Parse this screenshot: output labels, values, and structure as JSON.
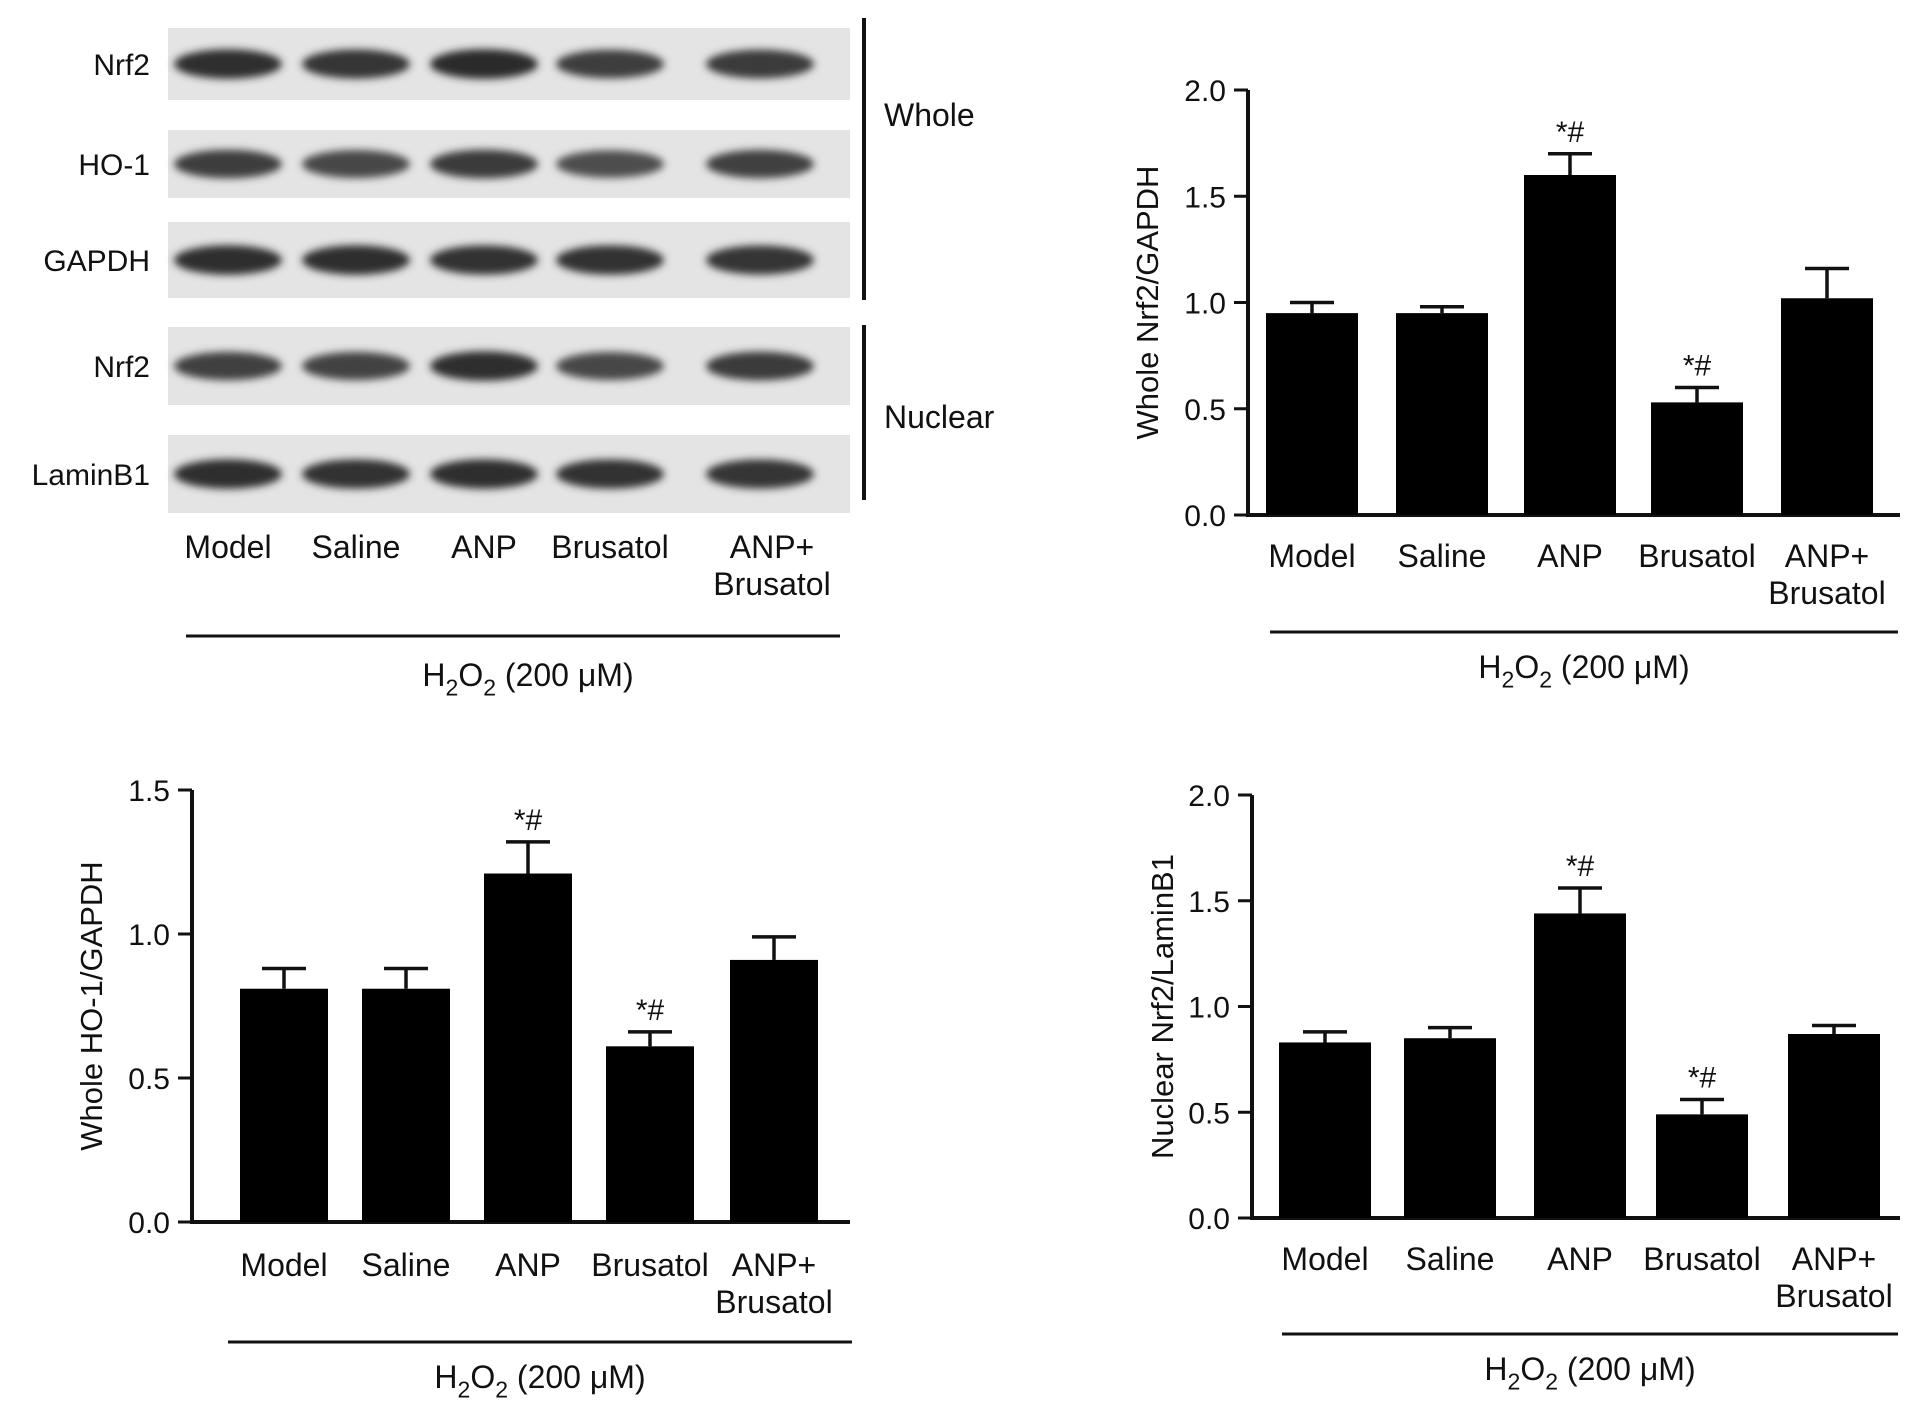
{
  "blot": {
    "rows": [
      {
        "label": "Nrf2",
        "intensity": [
          0.95,
          0.9,
          0.98,
          0.82,
          0.85
        ]
      },
      {
        "label": "HO-1",
        "intensity": [
          0.82,
          0.75,
          0.85,
          0.68,
          0.8
        ]
      },
      {
        "label": "GAPDH",
        "intensity": [
          0.95,
          0.95,
          0.92,
          0.92,
          0.9
        ]
      },
      {
        "label": "Nrf2",
        "intensity": [
          0.8,
          0.78,
          0.95,
          0.75,
          0.85
        ]
      },
      {
        "label": "LaminB1",
        "intensity": [
          0.95,
          0.92,
          0.95,
          0.92,
          0.9
        ]
      }
    ],
    "groups": [
      "Whole",
      "Nuclear"
    ],
    "lanes": [
      "Model",
      "Saline",
      "ANP",
      "Brusatol",
      "ANP+ Brusatol"
    ],
    "treatment": {
      "base": "H",
      "sub1": "2",
      "mid": "O",
      "sub2": "2",
      "rest": " (200 μM)"
    }
  },
  "chart_data": [
    {
      "type": "bar",
      "panel": "top-right",
      "ylabel": "Whole Nrf2/GAPDH",
      "categories": [
        "Model",
        "Saline",
        "ANP",
        "Brusatol",
        "ANP+ Brusatol"
      ],
      "values": [
        0.95,
        0.95,
        1.6,
        0.53,
        1.02
      ],
      "errors": [
        0.05,
        0.03,
        0.1,
        0.07,
        0.14
      ],
      "annotations": [
        "",
        "",
        "*#",
        "*#",
        ""
      ],
      "ylim": [
        0,
        2.0
      ],
      "yticks": [
        "0.0",
        "0.5",
        "1.0",
        "1.5",
        "2.0"
      ],
      "xgroup_label": {
        "base": "H",
        "sub1": "2",
        "mid": "O",
        "sub2": "2",
        "rest": " (200 μM)"
      },
      "bar_color": "#000000"
    },
    {
      "type": "bar",
      "panel": "bottom-left",
      "ylabel": "Whole HO-1/GAPDH",
      "categories": [
        "Model",
        "Saline",
        "ANP",
        "Brusatol",
        "ANP+ Brusatol"
      ],
      "values": [
        0.81,
        0.81,
        1.21,
        0.61,
        0.91
      ],
      "errors": [
        0.07,
        0.07,
        0.11,
        0.05,
        0.08
      ],
      "annotations": [
        "",
        "",
        "*#",
        "*#",
        ""
      ],
      "ylim": [
        0,
        1.5
      ],
      "yticks": [
        "0.0",
        "0.5",
        "1.0",
        "1.5"
      ],
      "xgroup_label": {
        "base": "H",
        "sub1": "2",
        "mid": "O",
        "sub2": "2",
        "rest": " (200 μM)"
      },
      "bar_color": "#000000"
    },
    {
      "type": "bar",
      "panel": "bottom-right",
      "ylabel": "Nuclear Nrf2/LaminB1",
      "categories": [
        "Model",
        "Saline",
        "ANP",
        "Brusatol",
        "ANP+ Brusatol"
      ],
      "values": [
        0.83,
        0.85,
        1.44,
        0.49,
        0.87
      ],
      "errors": [
        0.05,
        0.05,
        0.12,
        0.07,
        0.04
      ],
      "annotations": [
        "",
        "",
        "*#",
        "*#",
        ""
      ],
      "ylim": [
        0,
        2.0
      ],
      "yticks": [
        "0.0",
        "0.5",
        "1.0",
        "1.5",
        "2.0"
      ],
      "xgroup_label": {
        "base": "H",
        "sub1": "2",
        "mid": "O",
        "sub2": "2",
        "rest": " (200 μM)"
      },
      "bar_color": "#000000"
    }
  ]
}
